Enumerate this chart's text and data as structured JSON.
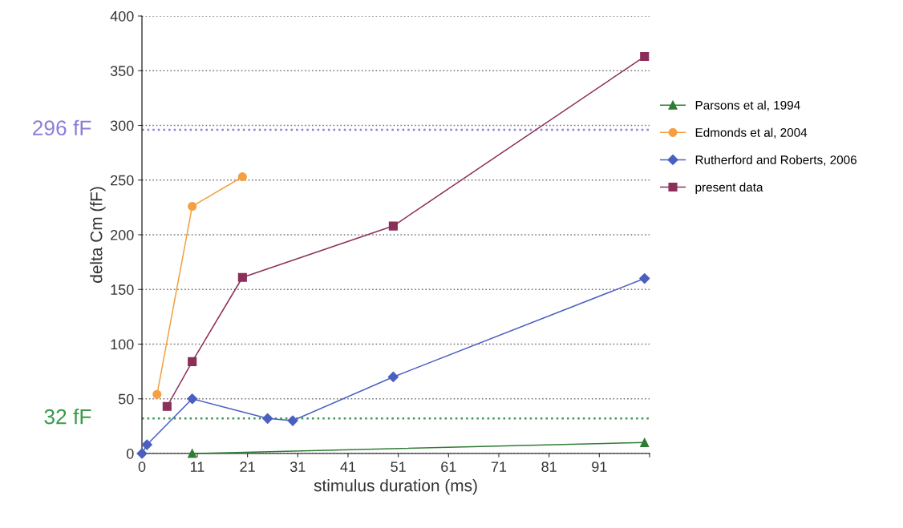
{
  "chart_data": {
    "type": "line",
    "xlabel": "stimulus duration (ms)",
    "ylabel": "delta Cm (fF)",
    "xlim": [
      0,
      101
    ],
    "xticks": [
      0,
      11,
      21,
      31,
      41,
      51,
      61,
      71,
      81,
      91,
      {
        "value": 101,
        "label": null
      }
    ],
    "ylim": [
      0,
      400
    ],
    "yticks": [
      0,
      50,
      100,
      150,
      200,
      250,
      300,
      350,
      400
    ],
    "grid": "y",
    "legend": "right",
    "series": [
      {
        "name": "Parsons et al, 1994",
        "color": "#2e7d32",
        "marker": "triangle",
        "x": [
          10,
          100
        ],
        "values": [
          0,
          10
        ]
      },
      {
        "name": "Edmonds et al, 2004",
        "color": "#f5a040",
        "marker": "circle",
        "x": [
          3,
          10,
          20
        ],
        "values": [
          54,
          226,
          253
        ]
      },
      {
        "name": "Rutherford and Roberts, 2006",
        "color": "#4a5fc0",
        "marker": "diamond",
        "x": [
          0,
          1,
          10,
          25,
          30,
          50,
          100
        ],
        "values": [
          0,
          8,
          50,
          32,
          30,
          70,
          160
        ]
      },
      {
        "name": "present data",
        "color": "#8b2f5a",
        "marker": "square",
        "x": [
          5,
          10,
          20,
          50,
          100
        ],
        "values": [
          43,
          84,
          161,
          208,
          363
        ]
      }
    ],
    "ref_lines": [
      {
        "axis": "y",
        "value": 296,
        "label": "296 fF",
        "color": "#8a7fd8",
        "line_style": "dotted"
      },
      {
        "axis": "y",
        "value": 32,
        "label": "32 fF",
        "color": "#3a9a4a",
        "line_style": "dotted"
      }
    ]
  }
}
